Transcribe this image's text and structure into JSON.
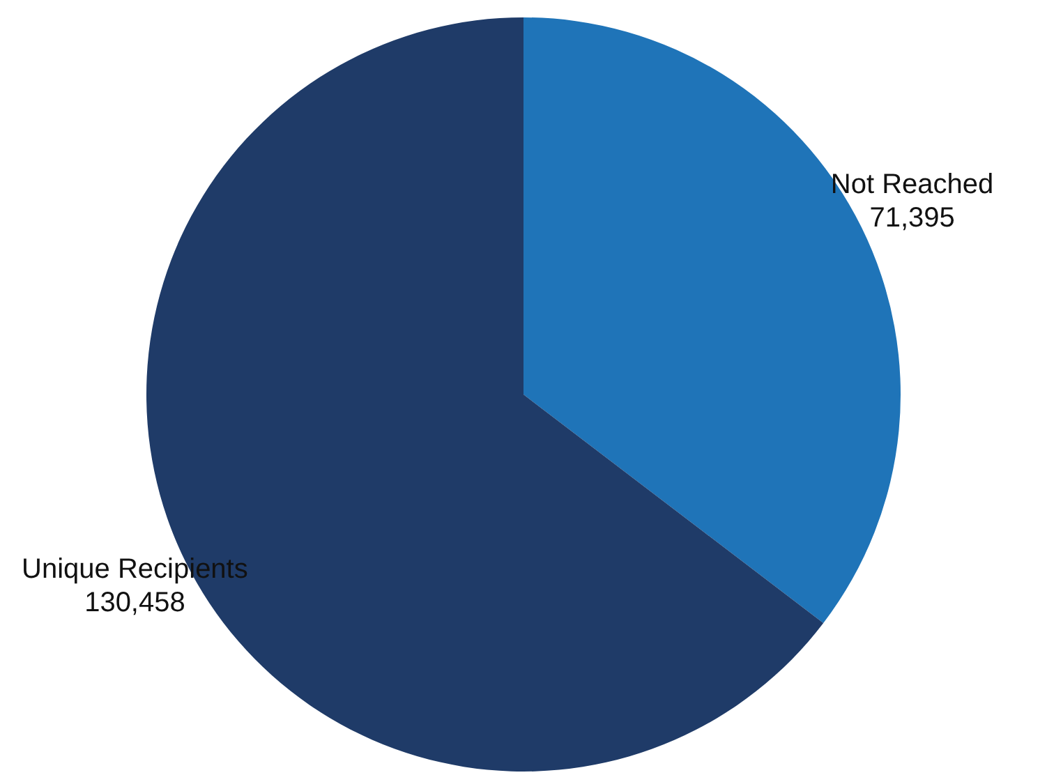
{
  "chart_data": {
    "type": "pie",
    "categories": [
      "Not Reached",
      "Unique Recipients"
    ],
    "values": [
      71395,
      130458
    ],
    "colors": [
      "#1f74b8",
      "#1f3b68"
    ],
    "value_labels": [
      "71,395",
      "130,458"
    ],
    "legend": false
  }
}
